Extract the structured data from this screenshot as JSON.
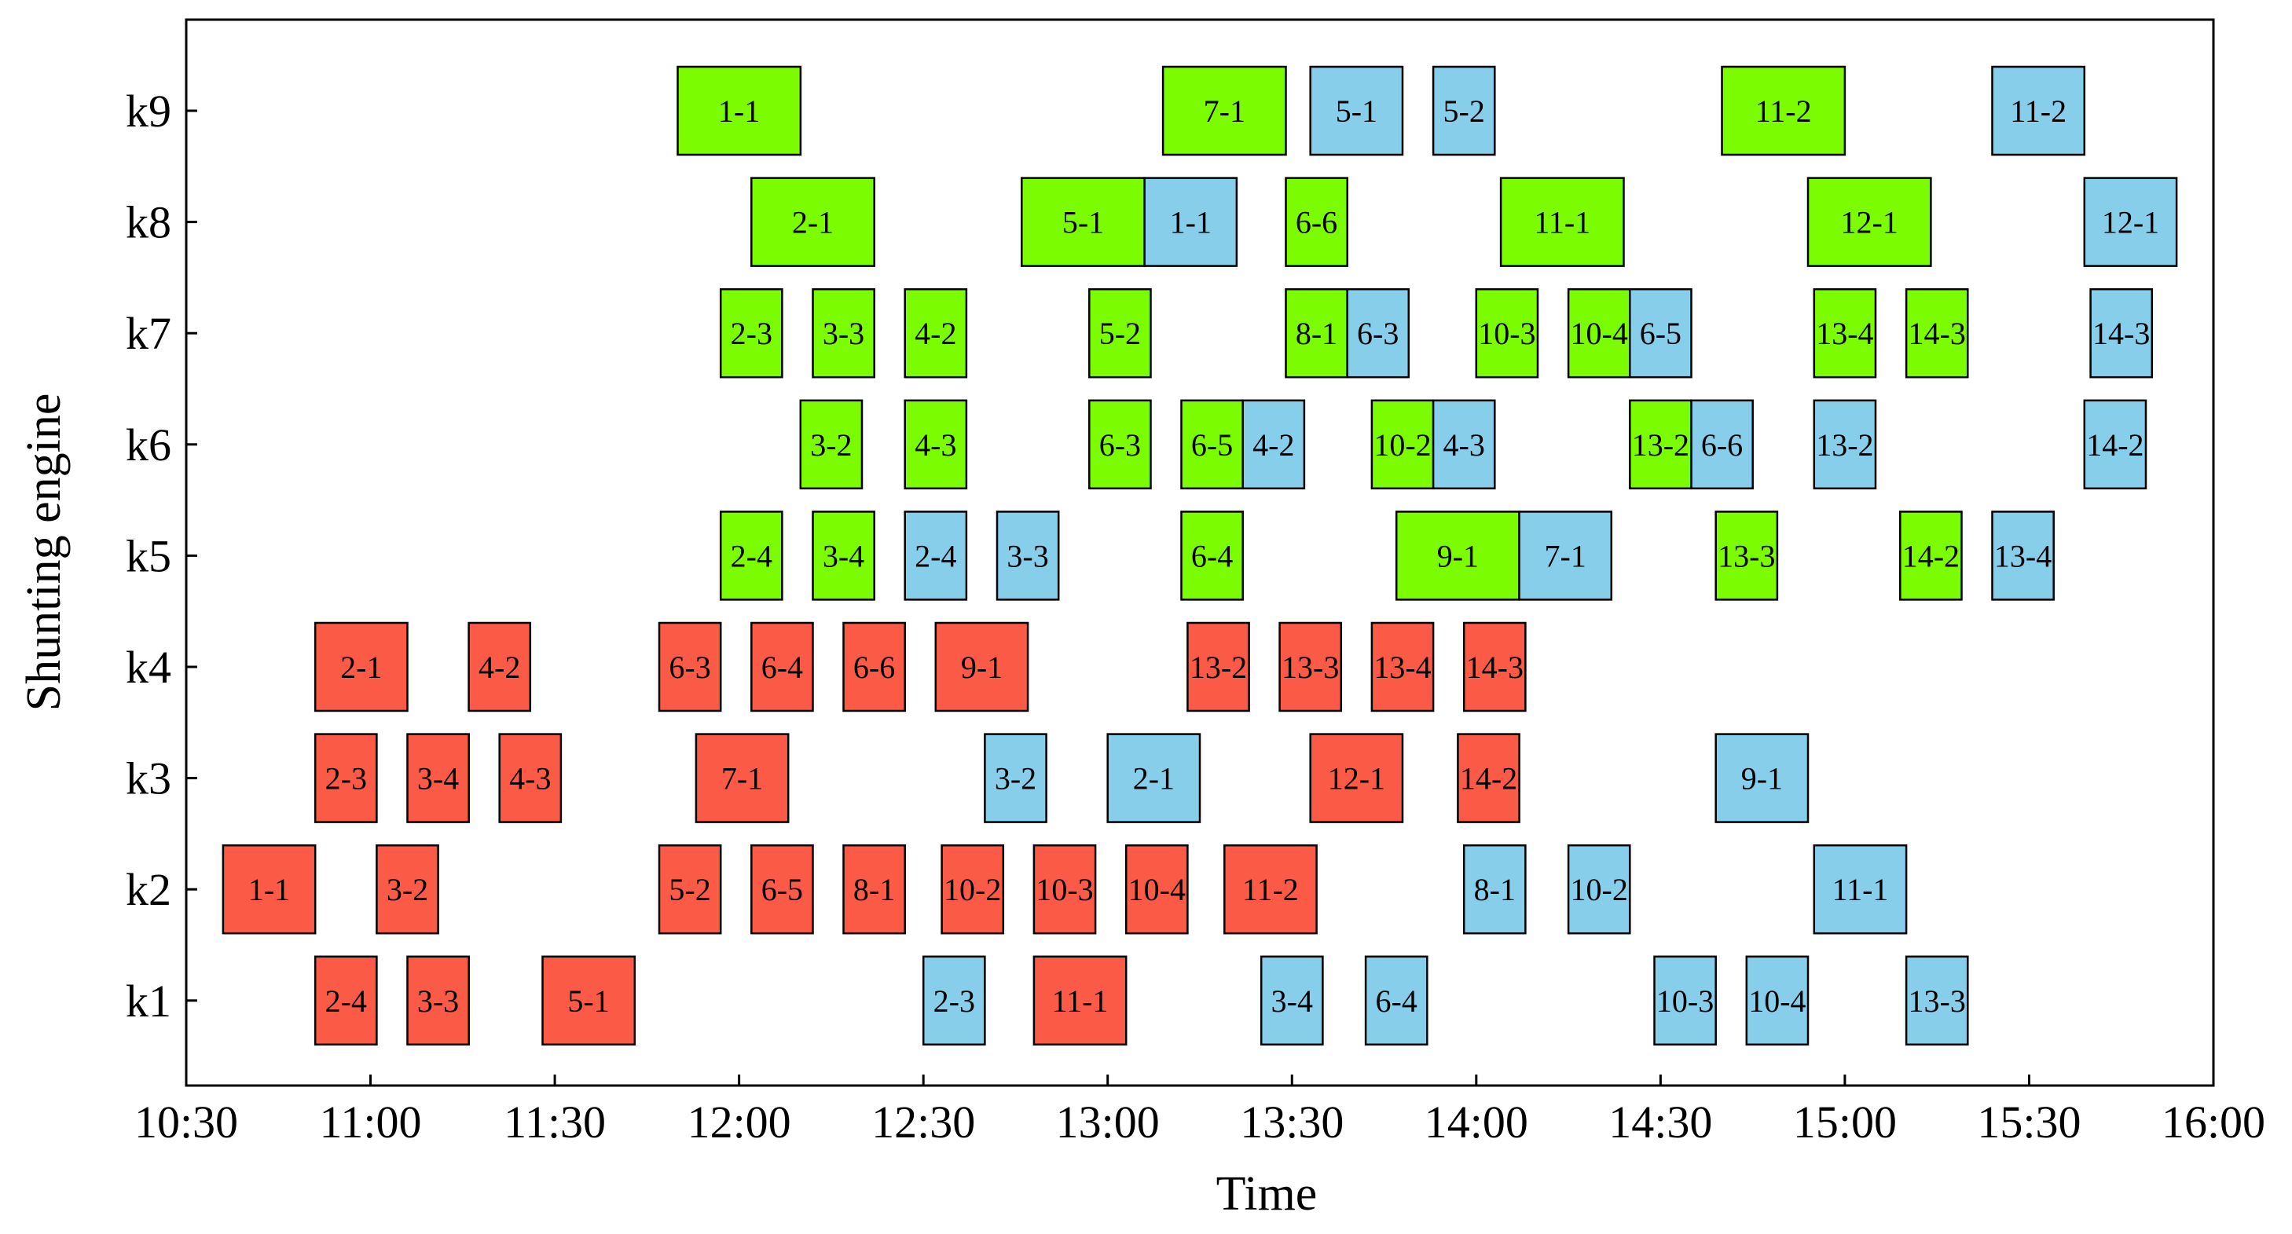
{
  "chart_data": {
    "type": "gantt",
    "xlabel": "Time",
    "ylabel": "Shunting engine",
    "x_ticks": [
      "10:30",
      "11:00",
      "11:30",
      "12:00",
      "12:30",
      "13:00",
      "13:30",
      "14:00",
      "14:30",
      "15:00",
      "15:30",
      "16:00"
    ],
    "xlim": [
      "10:30",
      "16:00"
    ],
    "y_categories": [
      "k1",
      "k2",
      "k3",
      "k4",
      "k5",
      "k6",
      "k7",
      "k8",
      "k9"
    ],
    "grid": false,
    "colors": {
      "red": "#fa5a46",
      "green": "#7cfc00",
      "blue": "#87ceeb"
    },
    "tasks": [
      {
        "engine": "k9",
        "label": "1-1",
        "start": "11:50",
        "end": "12:10",
        "color": "green"
      },
      {
        "engine": "k9",
        "label": "7-1",
        "start": "13:09",
        "end": "13:29",
        "color": "green"
      },
      {
        "engine": "k9",
        "label": "5-1",
        "start": "13:33",
        "end": "13:48",
        "color": "blue"
      },
      {
        "engine": "k9",
        "label": "5-2",
        "start": "13:53",
        "end": "14:03",
        "color": "blue"
      },
      {
        "engine": "k9",
        "label": "11-2",
        "start": "14:40",
        "end": "15:00",
        "color": "green"
      },
      {
        "engine": "k9",
        "label": "11-2",
        "start": "15:24",
        "end": "15:39",
        "color": "blue"
      },
      {
        "engine": "k8",
        "label": "2-1",
        "start": "12:02",
        "end": "12:22",
        "color": "green"
      },
      {
        "engine": "k8",
        "label": "5-1",
        "start": "12:46",
        "end": "13:06",
        "color": "green"
      },
      {
        "engine": "k8",
        "label": "1-1",
        "start": "13:06",
        "end": "13:21",
        "color": "blue"
      },
      {
        "engine": "k8",
        "label": "6-6",
        "start": "13:29",
        "end": "13:39",
        "color": "green"
      },
      {
        "engine": "k8",
        "label": "11-1",
        "start": "14:04",
        "end": "14:24",
        "color": "green"
      },
      {
        "engine": "k8",
        "label": "12-1",
        "start": "14:54",
        "end": "15:14",
        "color": "green"
      },
      {
        "engine": "k8",
        "label": "12-1",
        "start": "15:39",
        "end": "15:54",
        "color": "blue"
      },
      {
        "engine": "k7",
        "label": "2-3",
        "start": "11:57",
        "end": "12:07",
        "color": "green"
      },
      {
        "engine": "k7",
        "label": "3-3",
        "start": "12:12",
        "end": "12:22",
        "color": "green"
      },
      {
        "engine": "k7",
        "label": "4-2",
        "start": "12:27",
        "end": "12:37",
        "color": "green"
      },
      {
        "engine": "k7",
        "label": "5-2",
        "start": "12:57",
        "end": "13:07",
        "color": "green"
      },
      {
        "engine": "k7",
        "label": "8-1",
        "start": "13:29",
        "end": "13:39",
        "color": "green"
      },
      {
        "engine": "k7",
        "label": "6-3",
        "start": "13:39",
        "end": "13:49",
        "color": "blue"
      },
      {
        "engine": "k7",
        "label": "10-3",
        "start": "14:00",
        "end": "14:10",
        "color": "green"
      },
      {
        "engine": "k7",
        "label": "10-4",
        "start": "14:15",
        "end": "14:25",
        "color": "green"
      },
      {
        "engine": "k7",
        "label": "6-5",
        "start": "14:25",
        "end": "14:35",
        "color": "blue"
      },
      {
        "engine": "k7",
        "label": "13-4",
        "start": "14:55",
        "end": "15:05",
        "color": "green"
      },
      {
        "engine": "k7",
        "label": "14-3",
        "start": "15:10",
        "end": "15:20",
        "color": "green"
      },
      {
        "engine": "k7",
        "label": "14-3",
        "start": "15:40",
        "end": "15:50",
        "color": "blue"
      },
      {
        "engine": "k6",
        "label": "3-2",
        "start": "12:10",
        "end": "12:20",
        "color": "green"
      },
      {
        "engine": "k6",
        "label": "4-3",
        "start": "12:27",
        "end": "12:37",
        "color": "green"
      },
      {
        "engine": "k6",
        "label": "6-3",
        "start": "12:57",
        "end": "13:07",
        "color": "green"
      },
      {
        "engine": "k6",
        "label": "6-5",
        "start": "13:12",
        "end": "13:22",
        "color": "green"
      },
      {
        "engine": "k6",
        "label": "4-2",
        "start": "13:22",
        "end": "13:32",
        "color": "blue"
      },
      {
        "engine": "k6",
        "label": "10-2",
        "start": "13:43",
        "end": "13:53",
        "color": "green"
      },
      {
        "engine": "k6",
        "label": "4-3",
        "start": "13:53",
        "end": "14:03",
        "color": "blue"
      },
      {
        "engine": "k6",
        "label": "13-2",
        "start": "14:25",
        "end": "14:35",
        "color": "green"
      },
      {
        "engine": "k6",
        "label": "6-6",
        "start": "14:35",
        "end": "14:45",
        "color": "blue"
      },
      {
        "engine": "k6",
        "label": "13-2",
        "start": "14:55",
        "end": "15:05",
        "color": "blue"
      },
      {
        "engine": "k6",
        "label": "14-2",
        "start": "15:39",
        "end": "15:49",
        "color": "blue"
      },
      {
        "engine": "k5",
        "label": "2-4",
        "start": "11:57",
        "end": "12:07",
        "color": "green"
      },
      {
        "engine": "k5",
        "label": "3-4",
        "start": "12:12",
        "end": "12:22",
        "color": "green"
      },
      {
        "engine": "k5",
        "label": "2-4",
        "start": "12:27",
        "end": "12:37",
        "color": "blue"
      },
      {
        "engine": "k5",
        "label": "3-3",
        "start": "12:42",
        "end": "12:52",
        "color": "blue"
      },
      {
        "engine": "k5",
        "label": "6-4",
        "start": "13:12",
        "end": "13:22",
        "color": "green"
      },
      {
        "engine": "k5",
        "label": "9-1",
        "start": "13:47",
        "end": "14:07",
        "color": "green"
      },
      {
        "engine": "k5",
        "label": "7-1",
        "start": "14:07",
        "end": "14:22",
        "color": "blue"
      },
      {
        "engine": "k5",
        "label": "13-3",
        "start": "14:39",
        "end": "14:49",
        "color": "green"
      },
      {
        "engine": "k5",
        "label": "14-2",
        "start": "15:09",
        "end": "15:19",
        "color": "green"
      },
      {
        "engine": "k5",
        "label": "13-4",
        "start": "15:24",
        "end": "15:34",
        "color": "blue"
      },
      {
        "engine": "k4",
        "label": "2-1",
        "start": "10:51",
        "end": "11:06",
        "color": "red"
      },
      {
        "engine": "k4",
        "label": "4-2",
        "start": "11:16",
        "end": "11:26",
        "color": "red"
      },
      {
        "engine": "k4",
        "label": "6-3",
        "start": "11:47",
        "end": "11:57",
        "color": "red"
      },
      {
        "engine": "k4",
        "label": "6-4",
        "start": "12:02",
        "end": "12:12",
        "color": "red"
      },
      {
        "engine": "k4",
        "label": "6-6",
        "start": "12:17",
        "end": "12:27",
        "color": "red"
      },
      {
        "engine": "k4",
        "label": "9-1",
        "start": "12:32",
        "end": "12:47",
        "color": "red"
      },
      {
        "engine": "k4",
        "label": "13-2",
        "start": "13:13",
        "end": "13:23",
        "color": "red"
      },
      {
        "engine": "k4",
        "label": "13-3",
        "start": "13:28",
        "end": "13:38",
        "color": "red"
      },
      {
        "engine": "k4",
        "label": "13-4",
        "start": "13:43",
        "end": "13:53",
        "color": "red"
      },
      {
        "engine": "k4",
        "label": "14-3",
        "start": "13:58",
        "end": "14:08",
        "color": "red"
      },
      {
        "engine": "k3",
        "label": "2-3",
        "start": "10:51",
        "end": "11:01",
        "color": "red"
      },
      {
        "engine": "k3",
        "label": "3-4",
        "start": "11:06",
        "end": "11:16",
        "color": "red"
      },
      {
        "engine": "k3",
        "label": "4-3",
        "start": "11:21",
        "end": "11:31",
        "color": "red"
      },
      {
        "engine": "k3",
        "label": "7-1",
        "start": "11:53",
        "end": "12:08",
        "color": "red"
      },
      {
        "engine": "k3",
        "label": "3-2",
        "start": "12:40",
        "end": "12:50",
        "color": "blue"
      },
      {
        "engine": "k3",
        "label": "2-1",
        "start": "13:00",
        "end": "13:15",
        "color": "blue"
      },
      {
        "engine": "k3",
        "label": "12-1",
        "start": "13:33",
        "end": "13:48",
        "color": "red"
      },
      {
        "engine": "k3",
        "label": "14-2",
        "start": "13:57",
        "end": "14:07",
        "color": "red"
      },
      {
        "engine": "k3",
        "label": "9-1",
        "start": "14:39",
        "end": "14:54",
        "color": "blue"
      },
      {
        "engine": "k2",
        "label": "1-1",
        "start": "10:36",
        "end": "10:51",
        "color": "red"
      },
      {
        "engine": "k2",
        "label": "3-2",
        "start": "11:01",
        "end": "11:11",
        "color": "red"
      },
      {
        "engine": "k2",
        "label": "5-2",
        "start": "11:47",
        "end": "11:57",
        "color": "red"
      },
      {
        "engine": "k2",
        "label": "6-5",
        "start": "12:02",
        "end": "12:12",
        "color": "red"
      },
      {
        "engine": "k2",
        "label": "8-1",
        "start": "12:17",
        "end": "12:27",
        "color": "red"
      },
      {
        "engine": "k2",
        "label": "10-2",
        "start": "12:33",
        "end": "12:43",
        "color": "red"
      },
      {
        "engine": "k2",
        "label": "10-3",
        "start": "12:48",
        "end": "12:58",
        "color": "red"
      },
      {
        "engine": "k2",
        "label": "10-4",
        "start": "13:03",
        "end": "13:13",
        "color": "red"
      },
      {
        "engine": "k2",
        "label": "11-2",
        "start": "13:19",
        "end": "13:34",
        "color": "red"
      },
      {
        "engine": "k2",
        "label": "8-1",
        "start": "13:58",
        "end": "14:08",
        "color": "blue"
      },
      {
        "engine": "k2",
        "label": "10-2",
        "start": "14:15",
        "end": "14:25",
        "color": "blue"
      },
      {
        "engine": "k2",
        "label": "11-1",
        "start": "14:55",
        "end": "15:10",
        "color": "blue"
      },
      {
        "engine": "k1",
        "label": "2-4",
        "start": "10:51",
        "end": "11:01",
        "color": "red"
      },
      {
        "engine": "k1",
        "label": "3-3",
        "start": "11:06",
        "end": "11:16",
        "color": "red"
      },
      {
        "engine": "k1",
        "label": "5-1",
        "start": "11:28",
        "end": "11:43",
        "color": "red"
      },
      {
        "engine": "k1",
        "label": "2-3",
        "start": "12:30",
        "end": "12:40",
        "color": "blue"
      },
      {
        "engine": "k1",
        "label": "11-1",
        "start": "12:48",
        "end": "13:03",
        "color": "red"
      },
      {
        "engine": "k1",
        "label": "3-4",
        "start": "13:25",
        "end": "13:35",
        "color": "blue"
      },
      {
        "engine": "k1",
        "label": "6-4",
        "start": "13:42",
        "end": "13:52",
        "color": "blue"
      },
      {
        "engine": "k1",
        "label": "10-3",
        "start": "14:29",
        "end": "14:39",
        "color": "blue"
      },
      {
        "engine": "k1",
        "label": "10-4",
        "start": "14:44",
        "end": "14:54",
        "color": "blue"
      },
      {
        "engine": "k1",
        "label": "13-3",
        "start": "15:10",
        "end": "15:20",
        "color": "blue"
      }
    ]
  }
}
